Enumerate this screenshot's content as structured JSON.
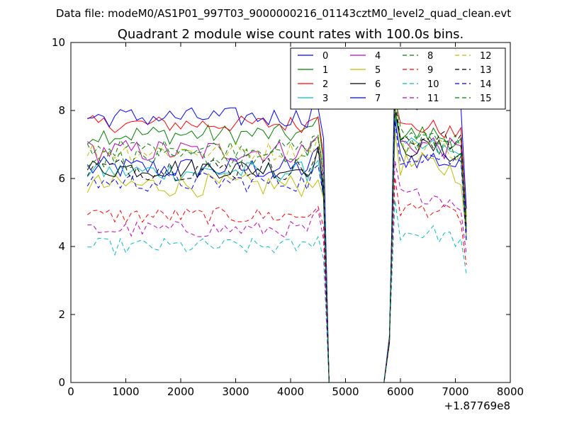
{
  "header": {
    "datafile": "Data file: modeM0/AS1P01_997T03_9000000216_01143cztM0_level2_quad_clean.evt"
  },
  "chart_data": {
    "type": "line",
    "title": "Quadrant 2 module wise count rates with 100.0s bins.",
    "xlabel": "",
    "ylabel": "",
    "x_offset_label": "+1.87769e8",
    "xlim": [
      0,
      8000
    ],
    "ylim": [
      0,
      10
    ],
    "xticks": [
      0,
      1000,
      2000,
      3000,
      4000,
      5000,
      6000,
      7000,
      8000
    ],
    "yticks": [
      0,
      2,
      4,
      6,
      8,
      10
    ],
    "legend_location": "top-right",
    "series": [
      {
        "name": "0",
        "color": "#0000ff",
        "dash": "solid",
        "base1": 6.3,
        "base2": 6.6,
        "amp": 0.35
      },
      {
        "name": "1",
        "color": "#008000",
        "dash": "solid",
        "base1": 7.3,
        "base2": 7.3,
        "amp": 0.3
      },
      {
        "name": "2",
        "color": "#ff0000",
        "dash": "solid",
        "base1": 7.6,
        "base2": 7.5,
        "amp": 0.25
      },
      {
        "name": "3",
        "color": "#00bfbf",
        "dash": "solid",
        "base1": 6.2,
        "base2": 6.9,
        "amp": 0.3
      },
      {
        "name": "4",
        "color": "#bf00bf",
        "dash": "solid",
        "base1": 6.8,
        "base2": 7.0,
        "amp": 0.35
      },
      {
        "name": "5",
        "color": "#bfbf00",
        "dash": "solid",
        "base1": 5.8,
        "base2": 6.4,
        "amp": 0.35
      },
      {
        "name": "6",
        "color": "#000000",
        "dash": "solid",
        "base1": 6.3,
        "base2": 6.9,
        "amp": 0.3
      },
      {
        "name": "7",
        "color": "#0000ff",
        "dash": "solid",
        "base1": 7.8,
        "base2": 8.2,
        "amp": 0.3
      },
      {
        "name": "8",
        "color": "#008000",
        "dash": "dashed",
        "base1": 6.9,
        "base2": 7.3,
        "amp": 0.25
      },
      {
        "name": "9",
        "color": "#ff0000",
        "dash": "dashed",
        "base1": 4.9,
        "base2": 5.1,
        "amp": 0.25
      },
      {
        "name": "10",
        "color": "#00bfbf",
        "dash": "dashed",
        "base1": 4.0,
        "base2": 4.4,
        "amp": 0.25
      },
      {
        "name": "11",
        "color": "#bf00bf",
        "dash": "dashed",
        "base1": 4.5,
        "base2": 5.5,
        "amp": 0.25
      },
      {
        "name": "12",
        "color": "#bfbf00",
        "dash": "dashed",
        "base1": 6.8,
        "base2": 7.0,
        "amp": 0.3
      },
      {
        "name": "13",
        "color": "#000000",
        "dash": "dashed",
        "base1": 6.3,
        "base2": 7.2,
        "amp": 0.35
      },
      {
        "name": "14",
        "color": "#0000ff",
        "dash": "dashed",
        "base1": 5.9,
        "base2": 6.7,
        "amp": 0.3
      },
      {
        "name": "15",
        "color": "#008000",
        "dash": "dashed",
        "base1": 6.6,
        "base2": 7.0,
        "amp": 0.3
      }
    ],
    "segments": {
      "seg1_x": [
        300,
        4500
      ],
      "drop_x": [
        4600,
        4700
      ],
      "gap_x": [
        4700,
        5700
      ],
      "rise_x": [
        5800,
        5900
      ],
      "seg2_x": [
        5900,
        7100
      ],
      "end_x": [
        7200
      ],
      "bin": 100
    }
  }
}
